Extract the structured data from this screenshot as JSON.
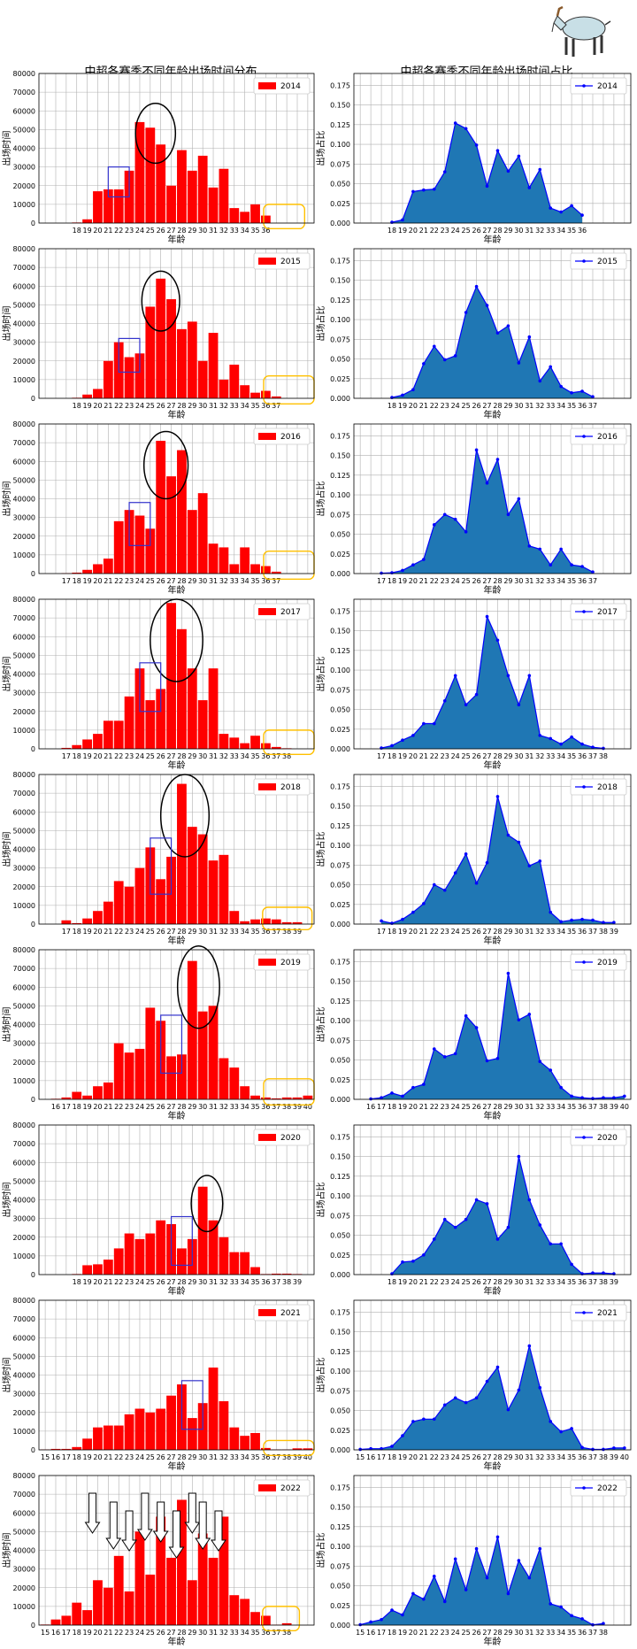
{
  "figure": {
    "left_title": "中超各赛季不同年龄出场时间分布",
    "right_title": "中超各赛季不同年龄出场时间占比",
    "left_ylabel": "出场时间",
    "right_ylabel": "出场占比",
    "xlabel": "年龄",
    "colors": {
      "bar": "#ff0000",
      "area": "#1f77b4",
      "line": "#0000ff",
      "circle": "#000000",
      "box": "#3333cc",
      "yellow": "#ffc000"
    }
  },
  "chart_data": [
    {
      "type": "bar",
      "panel": "left",
      "title": "中超各赛季不同年龄出场时间分布",
      "xlabel": "年龄",
      "ylabel": "出场时间",
      "ylim": [
        0,
        80000
      ],
      "ytick_labels": [
        "0",
        "10000",
        "20000",
        "30000",
        "40000",
        "50000",
        "60000",
        "70000",
        "80000"
      ],
      "rows": [
        {
          "season": "2014",
          "ages": [
            "18",
            "19",
            "20",
            "21",
            "22",
            "23",
            "24",
            "25",
            "26",
            "27",
            "28",
            "29",
            "30",
            "31",
            "32",
            "33",
            "34",
            "35",
            "36"
          ],
          "values": [
            300,
            2000,
            17000,
            18000,
            18000,
            28000,
            54000,
            51000,
            42000,
            20000,
            39000,
            28000,
            36000,
            19000,
            29000,
            8000,
            6000,
            10000,
            4000
          ]
        },
        {
          "season": "2015",
          "ages": [
            "18",
            "19",
            "20",
            "21",
            "22",
            "23",
            "24",
            "25",
            "26",
            "27",
            "28",
            "29",
            "30",
            "31",
            "32",
            "33",
            "34",
            "35",
            "36",
            "37"
          ],
          "values": [
            300,
            2000,
            5000,
            20000,
            30000,
            22000,
            24000,
            49000,
            64000,
            53000,
            37000,
            41000,
            20000,
            35000,
            10000,
            18000,
            7000,
            3000,
            4000,
            1000
          ]
        },
        {
          "season": "2016",
          "ages": [
            "17",
            "18",
            "19",
            "20",
            "21",
            "22",
            "23",
            "24",
            "25",
            "26",
            "27",
            "28",
            "29",
            "30",
            "31",
            "32",
            "33",
            "34",
            "35",
            "36",
            "37"
          ],
          "values": [
            200,
            500,
            2000,
            5000,
            8000,
            28000,
            34000,
            31000,
            24000,
            71000,
            52000,
            66000,
            34000,
            43000,
            16000,
            14000,
            5000,
            14000,
            5000,
            4000,
            1000
          ]
        },
        {
          "season": "2017",
          "ages": [
            "17",
            "18",
            "19",
            "20",
            "21",
            "22",
            "23",
            "24",
            "25",
            "26",
            "27",
            "28",
            "29",
            "30",
            "31",
            "32",
            "33",
            "34",
            "35",
            "36",
            "37",
            "38"
          ],
          "values": [
            500,
            2000,
            5000,
            8000,
            15000,
            15000,
            28000,
            43000,
            26000,
            32000,
            78000,
            64000,
            43000,
            26000,
            43000,
            8000,
            6000,
            3000,
            7000,
            3000,
            1000,
            300
          ]
        },
        {
          "season": "2018",
          "ages": [
            "17",
            "18",
            "19",
            "20",
            "21",
            "22",
            "23",
            "24",
            "25",
            "26",
            "27",
            "28",
            "29",
            "30",
            "31",
            "32",
            "33",
            "34",
            "35",
            "36",
            "37",
            "38",
            "39"
          ],
          "values": [
            2000,
            500,
            3000,
            7000,
            12000,
            23000,
            20000,
            30000,
            41000,
            24000,
            36000,
            75000,
            52000,
            48000,
            34000,
            37000,
            7000,
            1500,
            2500,
            3000,
            2500,
            1000,
            1000
          ]
        },
        {
          "season": "2019",
          "ages": [
            "16",
            "17",
            "18",
            "19",
            "20",
            "21",
            "22",
            "23",
            "24",
            "25",
            "26",
            "27",
            "28",
            "29",
            "30",
            "31",
            "32",
            "33",
            "34",
            "35",
            "36",
            "37",
            "38",
            "39",
            "40"
          ],
          "values": [
            300,
            1000,
            4000,
            2000,
            7000,
            9000,
            30000,
            25000,
            27000,
            49000,
            42000,
            23000,
            24000,
            74000,
            47000,
            50000,
            22000,
            17000,
            7000,
            2000,
            1000,
            500,
            1000,
            1000,
            2000
          ]
        },
        {
          "season": "2020",
          "ages": [
            "18",
            "19",
            "20",
            "21",
            "22",
            "23",
            "24",
            "25",
            "26",
            "27",
            "28",
            "29",
            "30",
            "31",
            "32",
            "33",
            "34",
            "35",
            "36",
            "37",
            "38",
            "39"
          ],
          "values": [
            300,
            5000,
            5500,
            8000,
            14000,
            22000,
            19000,
            22000,
            29000,
            27000,
            14000,
            19000,
            47000,
            29000,
            20000,
            12000,
            12000,
            4000,
            300,
            500,
            500,
            300
          ]
        },
        {
          "season": "2021",
          "ages": [
            "15",
            "16",
            "17",
            "18",
            "19",
            "20",
            "21",
            "22",
            "23",
            "24",
            "25",
            "26",
            "27",
            "28",
            "29",
            "30",
            "31",
            "32",
            "33",
            "34",
            "35",
            "36",
            "37",
            "38",
            "39",
            "40"
          ],
          "values": [
            200,
            500,
            500,
            1500,
            6000,
            12000,
            13000,
            13000,
            19000,
            22000,
            20000,
            22000,
            29000,
            35000,
            17000,
            25000,
            44000,
            26000,
            12000,
            7500,
            9000,
            1000,
            200,
            200,
            800,
            800
          ]
        },
        {
          "season": "2022",
          "ages": [
            "15",
            "16",
            "17",
            "18",
            "19",
            "20",
            "21",
            "22",
            "23",
            "24",
            "25",
            "26",
            "27",
            "28",
            "29",
            "30",
            "31",
            "32",
            "33",
            "34",
            "35",
            "36",
            "37",
            "38"
          ],
          "values": [
            300,
            3000,
            5000,
            12000,
            8000,
            24000,
            20000,
            37000,
            18000,
            50000,
            27000,
            58000,
            36000,
            67000,
            24000,
            49000,
            36000,
            58000,
            16000,
            14000,
            7000,
            5000,
            200,
            1000
          ]
        }
      ]
    },
    {
      "type": "area",
      "panel": "right",
      "title": "中超各赛季不同年龄出场时间占比",
      "xlabel": "年龄",
      "ylabel": "出场占比",
      "ylim": [
        0,
        0.19
      ],
      "ytick_labels": [
        "0.000",
        "0.025",
        "0.050",
        "0.075",
        "0.100",
        "0.125",
        "0.150",
        "0.175"
      ],
      "rows": [
        {
          "season": "2014",
          "ages": [
            "18",
            "19",
            "20",
            "21",
            "22",
            "23",
            "24",
            "25",
            "26",
            "27",
            "28",
            "29",
            "30",
            "31",
            "32",
            "33",
            "34",
            "35",
            "36"
          ],
          "values": [
            0.001,
            0.004,
            0.04,
            0.042,
            0.043,
            0.065,
            0.127,
            0.12,
            0.099,
            0.047,
            0.092,
            0.066,
            0.085,
            0.045,
            0.068,
            0.019,
            0.014,
            0.022,
            0.01
          ]
        },
        {
          "season": "2015",
          "ages": [
            "18",
            "19",
            "20",
            "21",
            "22",
            "23",
            "24",
            "25",
            "26",
            "27",
            "28",
            "29",
            "30",
            "31",
            "32",
            "33",
            "34",
            "35",
            "36",
            "37"
          ],
          "values": [
            0.001,
            0.004,
            0.011,
            0.044,
            0.066,
            0.049,
            0.054,
            0.109,
            0.142,
            0.118,
            0.083,
            0.092,
            0.045,
            0.078,
            0.022,
            0.04,
            0.015,
            0.007,
            0.009,
            0.002
          ]
        },
        {
          "season": "2016",
          "ages": [
            "17",
            "18",
            "19",
            "20",
            "21",
            "22",
            "23",
            "24",
            "25",
            "26",
            "27",
            "28",
            "29",
            "30",
            "31",
            "32",
            "33",
            "34",
            "35",
            "36",
            "37"
          ],
          "values": [
            0.0005,
            0.001,
            0.004,
            0.011,
            0.018,
            0.062,
            0.075,
            0.069,
            0.053,
            0.157,
            0.115,
            0.145,
            0.075,
            0.095,
            0.035,
            0.031,
            0.011,
            0.031,
            0.011,
            0.009,
            0.002
          ]
        },
        {
          "season": "2017",
          "ages": [
            "17",
            "18",
            "19",
            "20",
            "21",
            "22",
            "23",
            "24",
            "25",
            "26",
            "27",
            "28",
            "29",
            "30",
            "31",
            "32",
            "33",
            "34",
            "35",
            "36",
            "37",
            "38"
          ],
          "values": [
            0.001,
            0.004,
            0.011,
            0.017,
            0.032,
            0.032,
            0.061,
            0.093,
            0.056,
            0.069,
            0.168,
            0.138,
            0.093,
            0.056,
            0.093,
            0.017,
            0.013,
            0.006,
            0.015,
            0.006,
            0.002,
            0.0006
          ]
        },
        {
          "season": "2018",
          "ages": [
            "17",
            "18",
            "19",
            "20",
            "21",
            "22",
            "23",
            "24",
            "25",
            "26",
            "27",
            "28",
            "29",
            "30",
            "31",
            "32",
            "33",
            "34",
            "35",
            "36",
            "37",
            "38",
            "39"
          ],
          "values": [
            0.004,
            0.001,
            0.006,
            0.015,
            0.026,
            0.05,
            0.043,
            0.065,
            0.089,
            0.052,
            0.078,
            0.162,
            0.113,
            0.104,
            0.074,
            0.08,
            0.015,
            0.003,
            0.005,
            0.006,
            0.005,
            0.002,
            0.002
          ]
        },
        {
          "season": "2019",
          "ages": [
            "16",
            "17",
            "18",
            "19",
            "20",
            "21",
            "22",
            "23",
            "24",
            "25",
            "26",
            "27",
            "28",
            "29",
            "30",
            "31",
            "32",
            "33",
            "34",
            "35",
            "36",
            "37",
            "38",
            "39",
            "40"
          ],
          "values": [
            0.0005,
            0.002,
            0.008,
            0.004,
            0.015,
            0.019,
            0.064,
            0.054,
            0.058,
            0.106,
            0.091,
            0.049,
            0.052,
            0.16,
            0.101,
            0.108,
            0.048,
            0.037,
            0.015,
            0.004,
            0.002,
            0.001,
            0.002,
            0.002,
            0.004
          ]
        },
        {
          "season": "2020",
          "ages": [
            "18",
            "19",
            "20",
            "21",
            "22",
            "23",
            "24",
            "25",
            "26",
            "27",
            "28",
            "29",
            "30",
            "31",
            "32",
            "33",
            "34",
            "35",
            "36",
            "37",
            "38",
            "39"
          ],
          "values": [
            0.001,
            0.016,
            0.017,
            0.025,
            0.045,
            0.07,
            0.06,
            0.07,
            0.095,
            0.09,
            0.045,
            0.06,
            0.15,
            0.095,
            0.063,
            0.039,
            0.039,
            0.013,
            0.001,
            0.002,
            0.002,
            0.001
          ]
        },
        {
          "season": "2021",
          "ages": [
            "15",
            "16",
            "17",
            "18",
            "19",
            "20",
            "21",
            "22",
            "23",
            "24",
            "25",
            "26",
            "27",
            "28",
            "29",
            "30",
            "31",
            "32",
            "33",
            "34",
            "35",
            "36",
            "37",
            "38",
            "39",
            "40"
          ],
          "values": [
            0.0006,
            0.0015,
            0.0015,
            0.0045,
            0.018,
            0.036,
            0.039,
            0.039,
            0.057,
            0.066,
            0.06,
            0.066,
            0.087,
            0.105,
            0.051,
            0.076,
            0.132,
            0.079,
            0.036,
            0.023,
            0.027,
            0.003,
            0.0006,
            0.0006,
            0.0024,
            0.0024
          ]
        },
        {
          "season": "2022",
          "ages": [
            "15",
            "16",
            "17",
            "18",
            "19",
            "20",
            "21",
            "22",
            "23",
            "24",
            "25",
            "26",
            "27",
            "28",
            "29",
            "30",
            "31",
            "32",
            "33",
            "34",
            "35",
            "36",
            "37",
            "38"
          ],
          "values": [
            0.0005,
            0.004,
            0.007,
            0.019,
            0.013,
            0.04,
            0.033,
            0.062,
            0.03,
            0.084,
            0.045,
            0.097,
            0.06,
            0.112,
            0.04,
            0.082,
            0.06,
            0.097,
            0.027,
            0.023,
            0.012,
            0.008,
            0.0003,
            0.002
          ]
        }
      ]
    }
  ]
}
